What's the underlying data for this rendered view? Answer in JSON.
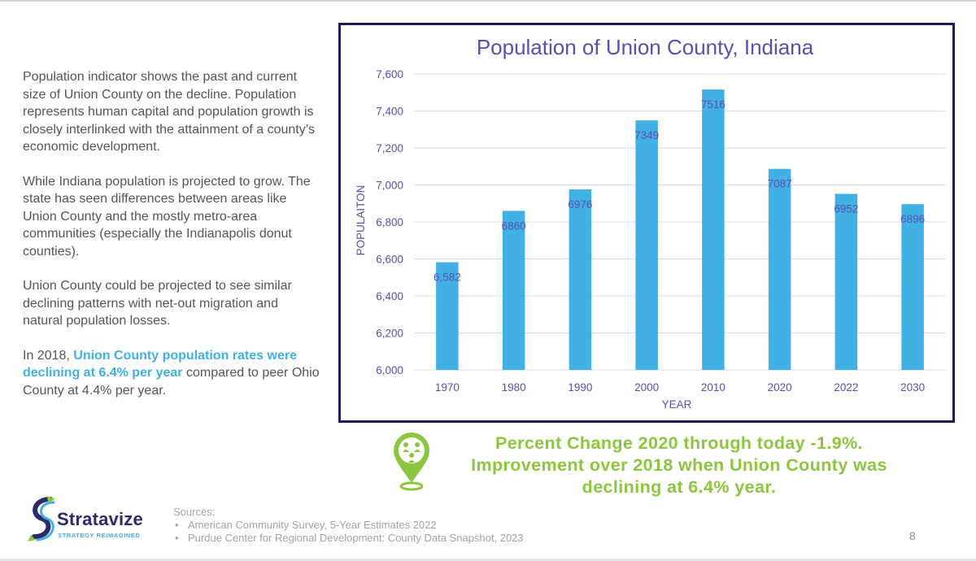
{
  "left_text": {
    "para1": "Population indicator shows the past and current size of Union County on the decline. Population represents human capital and population growth is closely interlinked with the attainment of a county’s economic development.",
    "para2": "While Indiana population is projected to grow. The state has seen differences between areas like Union County and the mostly metro-area communities (especially the Indianapolis donut counties).",
    "para3": "Union County could be projected to see similar declining patterns with net-out migration and natural population losses.",
    "para4_pre": "In 2018, ",
    "para4_highlight": "Union County population rates were declining at 6.4% per year",
    "para4_post": " compared to peer Ohio County at 4.4% per year."
  },
  "chart_data": {
    "type": "bar",
    "title": "Population of Union County, Indiana",
    "xlabel": "YEAR",
    "ylabel": "POPULAITON",
    "categories": [
      "1970",
      "1980",
      "1990",
      "2000",
      "2010",
      "2020",
      "2022",
      "2030"
    ],
    "values": [
      6582,
      6860,
      6976,
      7349,
      7516,
      7087,
      6952,
      6896
    ],
    "value_labels": [
      "6,582",
      "6860",
      "6976",
      "7349",
      "7516",
      "7087",
      "6952",
      "6896"
    ],
    "ylim": [
      6000,
      7600
    ],
    "yticks": [
      6000,
      6200,
      6400,
      6600,
      6800,
      7000,
      7200,
      7400,
      7600
    ],
    "ytick_labels": [
      "6,000",
      "6,200",
      "6,400",
      "6,600",
      "6,800",
      "7,000",
      "7,200",
      "7,400",
      "7,600"
    ],
    "grid": true,
    "colors": {
      "bar": "#41b0e4",
      "text": "#5a4fb0",
      "grid": "#d9d9ef",
      "frame": "#1f1a5e"
    }
  },
  "callout": {
    "line1": "Percent Change 2020 through today -1.9%.",
    "line2": "Improvement over 2018 when Union County was",
    "line3": "declining at 6.4% year.",
    "icon": "location-pin-people-icon",
    "color": "#8cc63f"
  },
  "logo": {
    "name": "Stratavize",
    "tagline": "STRATEGY REIMAGINED"
  },
  "sources": {
    "heading": "Sources:",
    "items": [
      "American Community Survey, 5-Year Estimates 2022",
      "Purdue Center for Regional Development: County Data Snapshot, 2023"
    ]
  },
  "page_number": "8"
}
